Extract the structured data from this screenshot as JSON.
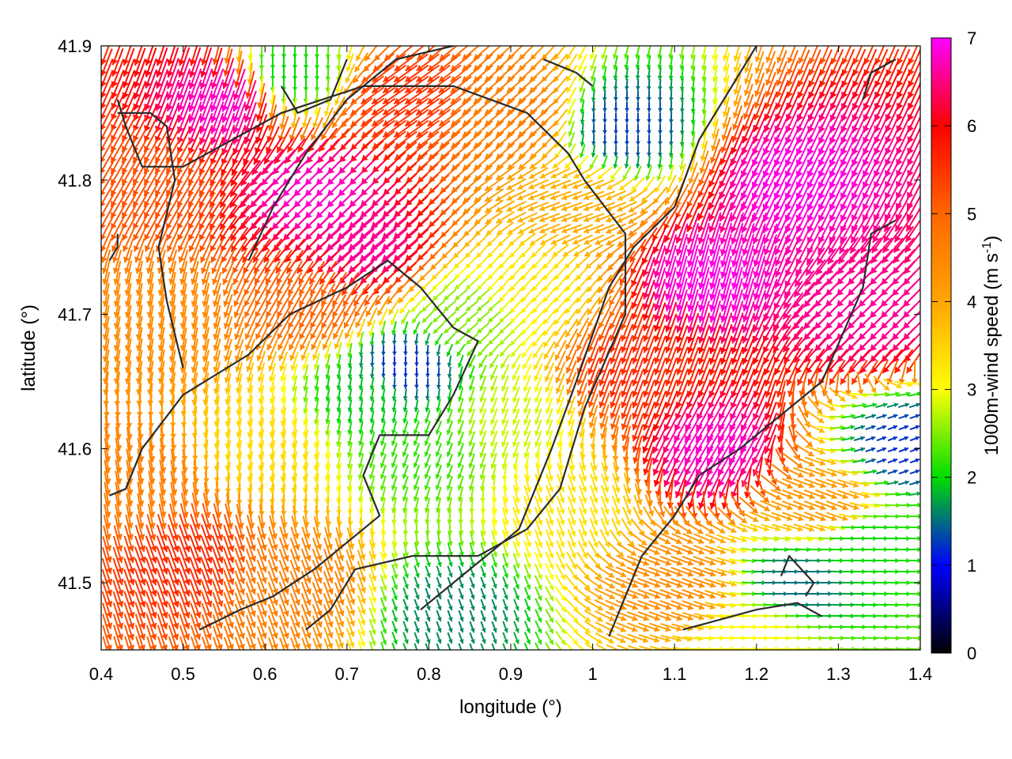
{
  "chart_data": {
    "type": "quiver",
    "xlabel": "longitude (°)",
    "ylabel": "latitude (°)",
    "colorbar_label": "1000m-wind speed (m s",
    "colorbar_label_sup": "-1",
    "colorbar_label_end": ")",
    "xlim": [
      0.4,
      1.4
    ],
    "ylim": [
      41.45,
      41.9
    ],
    "xticks": [
      0.4,
      0.5,
      0.6,
      0.7,
      0.8,
      0.9,
      1.0,
      1.1,
      1.2,
      1.3,
      1.4
    ],
    "xtick_labels": [
      "0.4",
      "0.5",
      "0.6",
      "0.7",
      "0.8",
      "0.9",
      "1",
      "1.1",
      "1.2",
      "1.3",
      "1.4"
    ],
    "yticks": [
      41.5,
      41.6,
      41.7,
      41.8,
      41.9
    ],
    "ytick_labels": [
      "41.5",
      "41.6",
      "41.7",
      "41.8",
      "41.9"
    ],
    "colorbar_range": [
      0,
      7
    ],
    "colorbar_ticks": [
      0,
      1,
      2,
      3,
      4,
      5,
      6,
      7
    ],
    "colorbar_tick_labels": [
      "0",
      "1",
      "2",
      "3",
      "4",
      "5",
      "6",
      "7"
    ],
    "colormap": [
      {
        "value": 0,
        "color": "#000000"
      },
      {
        "value": 1,
        "color": "#0000ff"
      },
      {
        "value": 2,
        "color": "#00dd00"
      },
      {
        "value": 3,
        "color": "#ffff00"
      },
      {
        "value": 4,
        "color": "#ffa500"
      },
      {
        "value": 5,
        "color": "#ff6600"
      },
      {
        "value": 6,
        "color": "#ff0000"
      },
      {
        "value": 7,
        "color": "#ff00ff"
      }
    ],
    "wind_regimes": [
      {
        "lon": 0.55,
        "lat": 41.86,
        "speed": 6.8,
        "dir_deg": 200
      },
      {
        "lon": 0.66,
        "lat": 41.79,
        "speed": 6.8,
        "dir_deg": 225
      },
      {
        "lon": 0.72,
        "lat": 41.75,
        "speed": 6.6,
        "dir_deg": 230
      },
      {
        "lon": 0.46,
        "lat": 41.8,
        "speed": 5.2,
        "dir_deg": 210
      },
      {
        "lon": 0.47,
        "lat": 41.7,
        "speed": 4.4,
        "dir_deg": 190
      },
      {
        "lon": 0.5,
        "lat": 41.52,
        "speed": 5.6,
        "dir_deg": 160
      },
      {
        "lon": 0.45,
        "lat": 41.57,
        "speed": 4.6,
        "dir_deg": 170
      },
      {
        "lon": 0.6,
        "lat": 41.6,
        "speed": 3.4,
        "dir_deg": 190
      },
      {
        "lon": 0.63,
        "lat": 41.5,
        "speed": 4.6,
        "dir_deg": 160
      },
      {
        "lon": 0.77,
        "lat": 41.66,
        "speed": 1.2,
        "dir_deg": 180
      },
      {
        "lon": 0.8,
        "lat": 41.6,
        "speed": 2.2,
        "dir_deg": 200
      },
      {
        "lon": 0.73,
        "lat": 41.64,
        "speed": 1.9,
        "dir_deg": 190
      },
      {
        "lon": 0.83,
        "lat": 41.48,
        "speed": 1.6,
        "dir_deg": 160
      },
      {
        "lon": 0.9,
        "lat": 41.62,
        "speed": 2.8,
        "dir_deg": 200
      },
      {
        "lon": 0.92,
        "lat": 41.72,
        "speed": 3.2,
        "dir_deg": 220
      },
      {
        "lon": 0.98,
        "lat": 41.78,
        "speed": 3.9,
        "dir_deg": 250
      },
      {
        "lon": 0.9,
        "lat": 41.85,
        "speed": 4.6,
        "dir_deg": 230
      },
      {
        "lon": 0.77,
        "lat": 41.86,
        "speed": 5.5,
        "dir_deg": 235
      },
      {
        "lon": 0.63,
        "lat": 41.88,
        "speed": 2.0,
        "dir_deg": 180
      },
      {
        "lon": 1.04,
        "lat": 41.84,
        "speed": 1.3,
        "dir_deg": 180
      },
      {
        "lon": 1.05,
        "lat": 41.66,
        "speed": 5.6,
        "dir_deg": 200
      },
      {
        "lon": 1.14,
        "lat": 41.73,
        "speed": 6.9,
        "dir_deg": 195
      },
      {
        "lon": 1.15,
        "lat": 41.6,
        "speed": 6.8,
        "dir_deg": 210
      },
      {
        "lon": 1.24,
        "lat": 41.8,
        "speed": 6.9,
        "dir_deg": 205
      },
      {
        "lon": 1.33,
        "lat": 41.7,
        "speed": 6.6,
        "dir_deg": 225
      },
      {
        "lon": 1.28,
        "lat": 41.56,
        "speed": 4.2,
        "dir_deg": 110
      },
      {
        "lon": 1.25,
        "lat": 41.5,
        "speed": 1.5,
        "dir_deg": 90
      },
      {
        "lon": 1.33,
        "lat": 41.53,
        "speed": 2.0,
        "dir_deg": 90
      },
      {
        "lon": 1.38,
        "lat": 41.6,
        "speed": 1.2,
        "dir_deg": 70
      },
      {
        "lon": 1.1,
        "lat": 41.5,
        "speed": 4.4,
        "dir_deg": 110
      },
      {
        "lon": 1.2,
        "lat": 41.46,
        "speed": 3.0,
        "dir_deg": 90
      },
      {
        "lon": 0.97,
        "lat": 41.56,
        "speed": 3.3,
        "dir_deg": 160
      },
      {
        "lon": 0.66,
        "lat": 41.71,
        "speed": 5.0,
        "dir_deg": 210
      },
      {
        "lon": 0.85,
        "lat": 41.7,
        "speed": 2.5,
        "dir_deg": 230
      }
    ],
    "contours": [
      [
        [
          0.41,
          41.565
        ],
        [
          0.43,
          41.57
        ],
        [
          0.45,
          41.6
        ],
        [
          0.5,
          41.64
        ],
        [
          0.58,
          41.67
        ],
        [
          0.63,
          41.7
        ],
        [
          0.7,
          41.72
        ],
        [
          0.75,
          41.74
        ],
        [
          0.79,
          41.72
        ],
        [
          0.83,
          41.69
        ],
        [
          0.86,
          41.68
        ],
        [
          0.83,
          41.64
        ],
        [
          0.8,
          41.61
        ],
        [
          0.74,
          41.61
        ],
        [
          0.72,
          41.58
        ],
        [
          0.74,
          41.55
        ],
        [
          0.7,
          41.53
        ],
        [
          0.66,
          41.51
        ],
        [
          0.61,
          41.49
        ],
        [
          0.57,
          41.48
        ],
        [
          0.52,
          41.465
        ]
      ],
      [
        [
          0.65,
          41.465
        ],
        [
          0.68,
          41.48
        ],
        [
          0.71,
          41.51
        ],
        [
          0.78,
          41.52
        ],
        [
          0.86,
          41.52
        ],
        [
          0.92,
          41.54
        ],
        [
          0.96,
          41.57
        ],
        [
          0.99,
          41.63
        ],
        [
          1.04,
          41.7
        ],
        [
          1.04,
          41.76
        ],
        [
          0.99,
          41.8
        ],
        [
          0.97,
          41.82
        ],
        [
          0.92,
          41.85
        ],
        [
          0.83,
          41.87
        ],
        [
          0.72,
          41.87
        ],
        [
          0.62,
          41.85
        ],
        [
          0.56,
          41.83
        ],
        [
          0.5,
          41.81
        ],
        [
          0.45,
          41.81
        ],
        [
          0.43,
          41.84
        ],
        [
          0.42,
          41.86
        ]
      ],
      [
        [
          0.5,
          41.66
        ],
        [
          0.48,
          41.71
        ],
        [
          0.47,
          41.75
        ],
        [
          0.49,
          41.8
        ],
        [
          0.48,
          41.84
        ],
        [
          0.46,
          41.85
        ],
        [
          0.42,
          41.85
        ]
      ],
      [
        [
          0.58,
          41.74
        ],
        [
          0.61,
          41.78
        ],
        [
          0.65,
          41.82
        ],
        [
          0.7,
          41.86
        ],
        [
          0.76,
          41.89
        ],
        [
          0.83,
          41.9
        ]
      ],
      [
        [
          0.79,
          41.48
        ],
        [
          0.85,
          41.51
        ],
        [
          0.91,
          41.54
        ],
        [
          0.95,
          41.6
        ],
        [
          0.98,
          41.65
        ],
        [
          1.02,
          41.72
        ],
        [
          1.05,
          41.75
        ],
        [
          1.1,
          41.78
        ],
        [
          1.13,
          41.83
        ],
        [
          1.16,
          41.86
        ],
        [
          1.2,
          41.9
        ]
      ],
      [
        [
          1.02,
          41.46
        ],
        [
          1.06,
          41.52
        ],
        [
          1.1,
          41.55
        ],
        [
          1.13,
          41.58
        ],
        [
          1.18,
          41.6
        ],
        [
          1.22,
          41.62
        ],
        [
          1.28,
          41.65
        ],
        [
          1.33,
          41.72
        ],
        [
          1.34,
          41.76
        ],
        [
          1.37,
          41.77
        ]
      ],
      [
        [
          1.11,
          41.465
        ],
        [
          1.2,
          41.48
        ],
        [
          1.25,
          41.485
        ],
        [
          1.28,
          41.475
        ]
      ],
      [
        [
          1.23,
          41.505
        ],
        [
          1.24,
          41.52
        ],
        [
          1.27,
          41.5
        ],
        [
          1.26,
          41.49
        ]
      ],
      [
        [
          1.33,
          41.86
        ],
        [
          1.34,
          41.88
        ],
        [
          1.37,
          41.89
        ]
      ],
      [
        [
          0.94,
          41.89
        ],
        [
          0.98,
          41.88
        ],
        [
          1.0,
          41.87
        ]
      ],
      [
        [
          0.62,
          41.87
        ],
        [
          0.64,
          41.85
        ],
        [
          0.68,
          41.86
        ],
        [
          0.7,
          41.89
        ]
      ],
      [
        [
          0.41,
          41.74
        ],
        [
          0.42,
          41.75
        ],
        [
          0.42,
          41.76
        ]
      ]
    ]
  }
}
